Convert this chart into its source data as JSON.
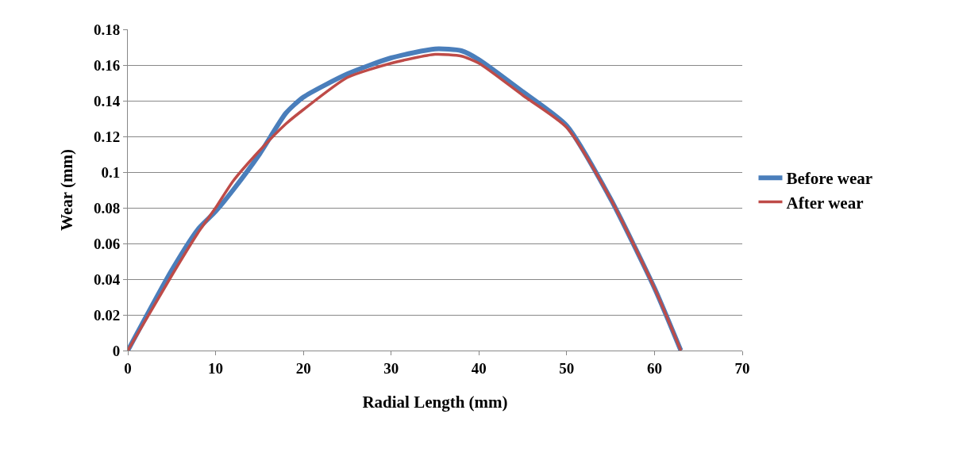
{
  "chart_data": {
    "type": "line",
    "xlabel": "Radial Length (mm)",
    "ylabel": "Wear (mm)",
    "xlim": [
      0,
      70
    ],
    "xticks": [
      0,
      10,
      20,
      30,
      40,
      50,
      60,
      70
    ],
    "ylim": [
      0,
      0.18
    ],
    "yticks": [
      0,
      0.02,
      0.04,
      0.06,
      0.08,
      0.1,
      0.12,
      0.14,
      0.16,
      0.18
    ],
    "grid": "y",
    "legend": "right",
    "marker": "none",
    "line_style": "solid",
    "series": [
      {
        "name": "Before wear",
        "color": "#4a7ebb",
        "x": [
          0,
          5,
          8,
          10,
          12,
          15,
          18,
          20,
          25,
          30,
          35,
          38,
          40,
          45,
          50,
          55,
          60,
          63
        ],
        "values": [
          0,
          0.045,
          0.068,
          0.078,
          0.09,
          0.11,
          0.133,
          0.142,
          0.155,
          0.164,
          0.169,
          0.168,
          0.163,
          0.145,
          0.126,
          0.085,
          0.035,
          0
        ]
      },
      {
        "name": "After wear",
        "color": "#be4b48",
        "x": [
          0,
          5,
          8,
          10,
          12,
          15,
          18,
          20,
          25,
          30,
          35,
          38,
          40,
          45,
          50,
          55,
          60,
          63
        ],
        "values": [
          0,
          0.042,
          0.066,
          0.08,
          0.095,
          0.112,
          0.127,
          0.135,
          0.153,
          0.161,
          0.166,
          0.165,
          0.161,
          0.143,
          0.125,
          0.085,
          0.035,
          0
        ]
      }
    ]
  }
}
